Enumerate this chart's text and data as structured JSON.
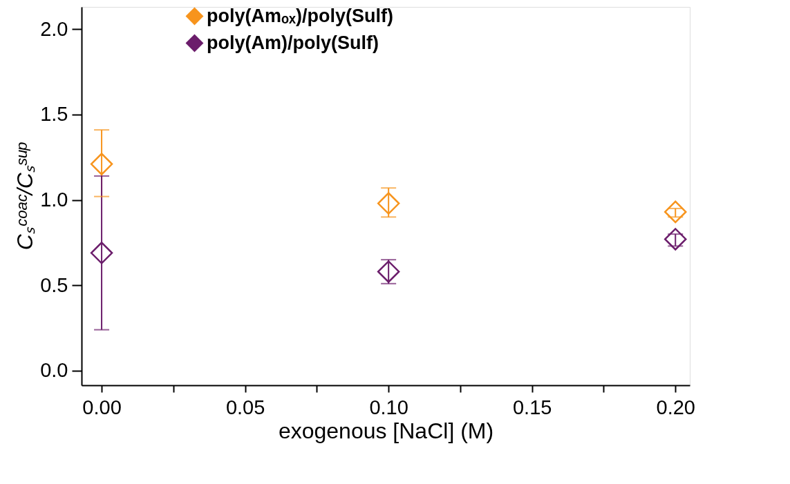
{
  "chart_data": {
    "type": "scatter",
    "xlabel": "exogenous [NaCl] (M)",
    "ylabel": "Cₛᶜᵒᵃᶜ/Cₛˢᵘᵖ",
    "x": [
      0.0,
      0.1,
      0.2
    ],
    "series": [
      {
        "name": "poly(Amₒₓ)/poly(Sulf)",
        "color": "#f7941d",
        "values": [
          1.21,
          0.98,
          0.93
        ],
        "errors": [
          [
            1.02,
            1.41
          ],
          [
            0.9,
            1.07
          ],
          [
            0.9,
            0.95
          ]
        ]
      },
      {
        "name": "poly(Am)/poly(Sulf)",
        "color": "#6b1d6b",
        "values": [
          0.69,
          0.58,
          0.77
        ],
        "errors": [
          [
            0.24,
            1.14
          ],
          [
            0.51,
            0.65
          ],
          [
            0.73,
            0.8
          ]
        ]
      }
    ],
    "xlim": [
      -0.007,
      0.205
    ],
    "ylim": [
      -0.085,
      2.13
    ],
    "xticks": [
      {
        "value": 0,
        "label": "0.00"
      },
      {
        "value": 0.025,
        "label": null
      },
      {
        "value": 0.05,
        "label": "0.05"
      },
      {
        "value": 0.075,
        "label": null
      },
      {
        "value": 0.1,
        "label": "0.10"
      },
      {
        "value": 0.125,
        "label": null
      },
      {
        "value": 0.15,
        "label": "0.15"
      },
      {
        "value": 0.175,
        "label": null
      },
      {
        "value": 0.2,
        "label": "0.20"
      }
    ],
    "yticks": [
      {
        "value": 0,
        "label": "0.0"
      },
      {
        "value": 0.5,
        "label": "0.5"
      },
      {
        "value": 1,
        "label": "1.0"
      },
      {
        "value": 1.5,
        "label": "1.5"
      },
      {
        "value": 2,
        "label": "2.0"
      }
    ],
    "marker": "diamond",
    "grid": false,
    "legend": "top"
  }
}
